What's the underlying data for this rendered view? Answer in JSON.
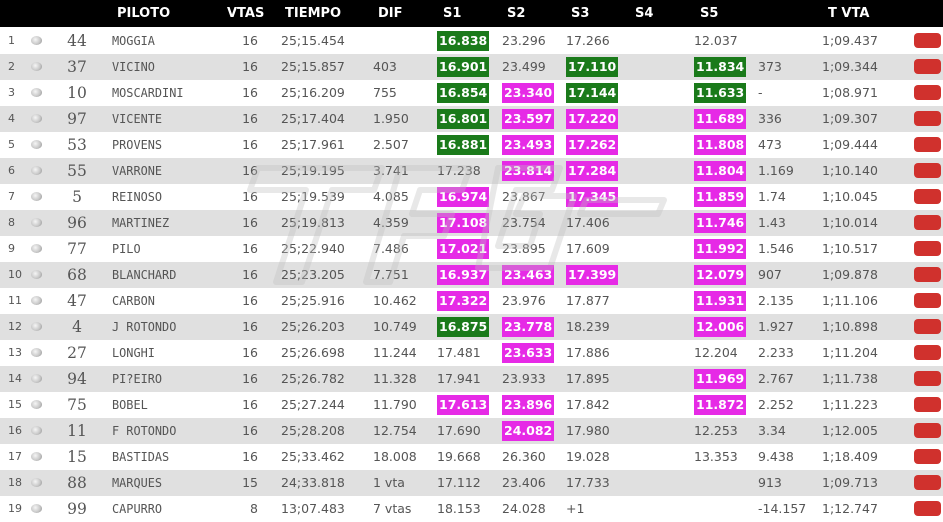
{
  "header": {
    "piloto": "PILOTO",
    "vtas": "VTAS",
    "tiempo": "TIEMPO",
    "dif": "DIF",
    "s1": "S1",
    "s2": "S2",
    "s3": "S3",
    "s4": "S4",
    "s5": "S5",
    "tvta": "T VTA"
  },
  "colors": {
    "best_sector": "#1a7a1a",
    "personal_sector": "#e62ae6",
    "status": "#d0312d",
    "header_bg": "#000000"
  },
  "rows": [
    {
      "pos": "1",
      "num": "44",
      "name": "MOGGIA",
      "vtas": "16",
      "tiempo": "25;15.454",
      "dif": "",
      "s1": "16.838",
      "s1c": "green",
      "s2": "23.296",
      "s2c": "",
      "s3": "17.266",
      "s3c": "",
      "s5": "12.037",
      "s5c": "",
      "dif5": "",
      "tvta": "1;09.437"
    },
    {
      "pos": "2",
      "num": "37",
      "name": "VICINO",
      "vtas": "16",
      "tiempo": "25;15.857",
      "dif": "403",
      "s1": "16.901",
      "s1c": "green",
      "s2": "23.499",
      "s2c": "",
      "s3": "17.110",
      "s3c": "green",
      "s5": "11.834",
      "s5c": "green",
      "dif5": "373",
      "tvta": "1;09.344"
    },
    {
      "pos": "3",
      "num": "10",
      "name": "MOSCARDINI",
      "vtas": "16",
      "tiempo": "25;16.209",
      "dif": "755",
      "s1": "16.854",
      "s1c": "green",
      "s2": "23.340",
      "s2c": "magenta",
      "s3": "17.144",
      "s3c": "green",
      "s5": "11.633",
      "s5c": "green",
      "dif5": "-",
      "tvta": "1;08.971"
    },
    {
      "pos": "4",
      "num": "97",
      "name": "VICENTE",
      "vtas": "16",
      "tiempo": "25;17.404",
      "dif": "1.950",
      "s1": "16.801",
      "s1c": "green",
      "s2": "23.597",
      "s2c": "magenta",
      "s3": "17.220",
      "s3c": "magenta",
      "s5": "11.689",
      "s5c": "magenta",
      "dif5": "336",
      "tvta": "1;09.307"
    },
    {
      "pos": "5",
      "num": "53",
      "name": "PROVENS",
      "vtas": "16",
      "tiempo": "25;17.961",
      "dif": "2.507",
      "s1": "16.881",
      "s1c": "green",
      "s2": "23.493",
      "s2c": "magenta",
      "s3": "17.262",
      "s3c": "magenta",
      "s5": "11.808",
      "s5c": "magenta",
      "dif5": "473",
      "tvta": "1;09.444"
    },
    {
      "pos": "6",
      "num": "55",
      "name": "VARRONE",
      "vtas": "16",
      "tiempo": "25;19.195",
      "dif": "3.741",
      "s1": "17.238",
      "s1c": "",
      "s2": "23.814",
      "s2c": "magenta",
      "s3": "17.284",
      "s3c": "magenta",
      "s5": "11.804",
      "s5c": "magenta",
      "dif5": "1.169",
      "tvta": "1;10.140"
    },
    {
      "pos": "7",
      "num": "5",
      "name": "REINOSO",
      "vtas": "16",
      "tiempo": "25;19.539",
      "dif": "4.085",
      "s1": "16.974",
      "s1c": "magenta",
      "s2": "23.867",
      "s2c": "",
      "s3": "17.345",
      "s3c": "magenta",
      "s5": "11.859",
      "s5c": "magenta",
      "dif5": "1.74",
      "tvta": "1;10.045"
    },
    {
      "pos": "8",
      "num": "96",
      "name": "MARTINEZ",
      "vtas": "16",
      "tiempo": "25;19.813",
      "dif": "4.359",
      "s1": "17.108",
      "s1c": "magenta",
      "s2": "23.754",
      "s2c": "",
      "s3": "17.406",
      "s3c": "",
      "s5": "11.746",
      "s5c": "magenta",
      "dif5": "1.43",
      "tvta": "1;10.014"
    },
    {
      "pos": "9",
      "num": "77",
      "name": "PILO",
      "vtas": "16",
      "tiempo": "25;22.940",
      "dif": "7.486",
      "s1": "17.021",
      "s1c": "magenta",
      "s2": "23.895",
      "s2c": "",
      "s3": "17.609",
      "s3c": "",
      "s5": "11.992",
      "s5c": "magenta",
      "dif5": "1.546",
      "tvta": "1;10.517"
    },
    {
      "pos": "10",
      "num": "68",
      "name": "BLANCHARD",
      "vtas": "16",
      "tiempo": "25;23.205",
      "dif": "7.751",
      "s1": "16.937",
      "s1c": "magenta",
      "s2": "23.463",
      "s2c": "magenta",
      "s3": "17.399",
      "s3c": "magenta",
      "s5": "12.079",
      "s5c": "magenta",
      "dif5": "907",
      "tvta": "1;09.878"
    },
    {
      "pos": "11",
      "num": "47",
      "name": "CARBON",
      "vtas": "16",
      "tiempo": "25;25.916",
      "dif": "10.462",
      "s1": "17.322",
      "s1c": "magenta",
      "s2": "23.976",
      "s2c": "",
      "s3": "17.877",
      "s3c": "",
      "s5": "11.931",
      "s5c": "magenta",
      "dif5": "2.135",
      "tvta": "1;11.106"
    },
    {
      "pos": "12",
      "num": "4",
      "name": "J ROTONDO",
      "vtas": "16",
      "tiempo": "25;26.203",
      "dif": "10.749",
      "s1": "16.875",
      "s1c": "green",
      "s2": "23.778",
      "s2c": "magenta",
      "s3": "18.239",
      "s3c": "",
      "s5": "12.006",
      "s5c": "magenta",
      "dif5": "1.927",
      "tvta": "1;10.898"
    },
    {
      "pos": "13",
      "num": "27",
      "name": "LONGHI",
      "vtas": "16",
      "tiempo": "25;26.698",
      "dif": "11.244",
      "s1": "17.481",
      "s1c": "",
      "s2": "23.633",
      "s2c": "magenta",
      "s3": "17.886",
      "s3c": "",
      "s5": "12.204",
      "s5c": "",
      "dif5": "2.233",
      "tvta": "1;11.204"
    },
    {
      "pos": "14",
      "num": "94",
      "name": "PI?EIRO",
      "vtas": "16",
      "tiempo": "25;26.782",
      "dif": "11.328",
      "s1": "17.941",
      "s1c": "",
      "s2": "23.933",
      "s2c": "",
      "s3": "17.895",
      "s3c": "",
      "s5": "11.969",
      "s5c": "magenta",
      "dif5": "2.767",
      "tvta": "1;11.738"
    },
    {
      "pos": "15",
      "num": "75",
      "name": "BOBEL",
      "vtas": "16",
      "tiempo": "25;27.244",
      "dif": "11.790",
      "s1": "17.613",
      "s1c": "magenta",
      "s2": "23.896",
      "s2c": "magenta",
      "s3": "17.842",
      "s3c": "",
      "s5": "11.872",
      "s5c": "magenta",
      "dif5": "2.252",
      "tvta": "1;11.223"
    },
    {
      "pos": "16",
      "num": "11",
      "name": "F ROTONDO",
      "vtas": "16",
      "tiempo": "25;28.208",
      "dif": "12.754",
      "s1": "17.690",
      "s1c": "",
      "s2": "24.082",
      "s2c": "magenta",
      "s3": "17.980",
      "s3c": "",
      "s5": "12.253",
      "s5c": "",
      "dif5": "3.34",
      "tvta": "1;12.005"
    },
    {
      "pos": "17",
      "num": "15",
      "name": "BASTIDAS",
      "vtas": "16",
      "tiempo": "25;33.462",
      "dif": "18.008",
      "s1": "19.668",
      "s1c": "",
      "s2": "26.360",
      "s2c": "",
      "s3": "19.028",
      "s3c": "",
      "s5": "13.353",
      "s5c": "",
      "dif5": "9.438",
      "tvta": "1;18.409"
    },
    {
      "pos": "18",
      "num": "88",
      "name": "MARQUES",
      "vtas": "15",
      "tiempo": "24;33.818",
      "dif": "1 vta",
      "s1": "17.112",
      "s1c": "",
      "s2": "23.406",
      "s2c": "",
      "s3": "17.733",
      "s3c": "",
      "s5": "",
      "s5c": "",
      "dif5": "913",
      "tvta": "1;09.713"
    },
    {
      "pos": "19",
      "num": "99",
      "name": "CAPURRO",
      "vtas": "8",
      "tiempo": "13;07.483",
      "dif": "7 vtas",
      "s1": "18.153",
      "s1c": "",
      "s2": "24.028",
      "s2c": "",
      "s3": "+1",
      "s3c": "",
      "s5": "",
      "s5c": "",
      "dif5": "-14.157",
      "tvta": "1;12.747"
    }
  ]
}
